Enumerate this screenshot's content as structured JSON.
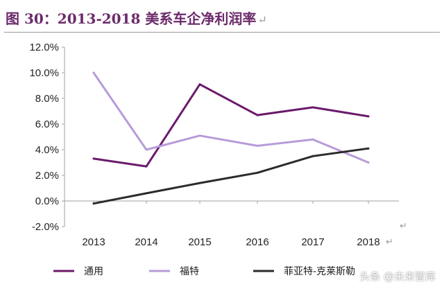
{
  "header": {
    "title": "图 30：2013-2018 美系车企净利润率",
    "title_mark": "↵"
  },
  "colors": {
    "gm": "#6b1a6b",
    "ford": "#b79bd9",
    "fca": "#2b2b2b",
    "axis": "#a0a0a0"
  },
  "chart_data": {
    "type": "line",
    "title": "2013-2018 美系车企净利润率",
    "categories": [
      "2013",
      "2014",
      "2015",
      "2016",
      "2017",
      "2018"
    ],
    "y_ticks": [
      "12.0%",
      "10.0%",
      "8.0%",
      "6.0%",
      "4.0%",
      "2.0%",
      "0.0%",
      "-2.0%"
    ],
    "ylim": [
      -2,
      12
    ],
    "series": [
      {
        "name": "通用",
        "values": [
          3.3,
          2.7,
          9.1,
          6.7,
          7.3,
          6.6
        ]
      },
      {
        "name": "福特",
        "values": [
          10.0,
          4.0,
          5.1,
          4.3,
          4.8,
          3.0
        ]
      },
      {
        "name": "菲亚特-克莱斯勒",
        "values": [
          -0.2,
          0.6,
          1.4,
          2.2,
          3.5,
          4.1
        ]
      }
    ],
    "legend_position": "bottom",
    "return_marks": [
      "↵",
      "↵"
    ]
  },
  "watermark": "头条 @未来智库"
}
